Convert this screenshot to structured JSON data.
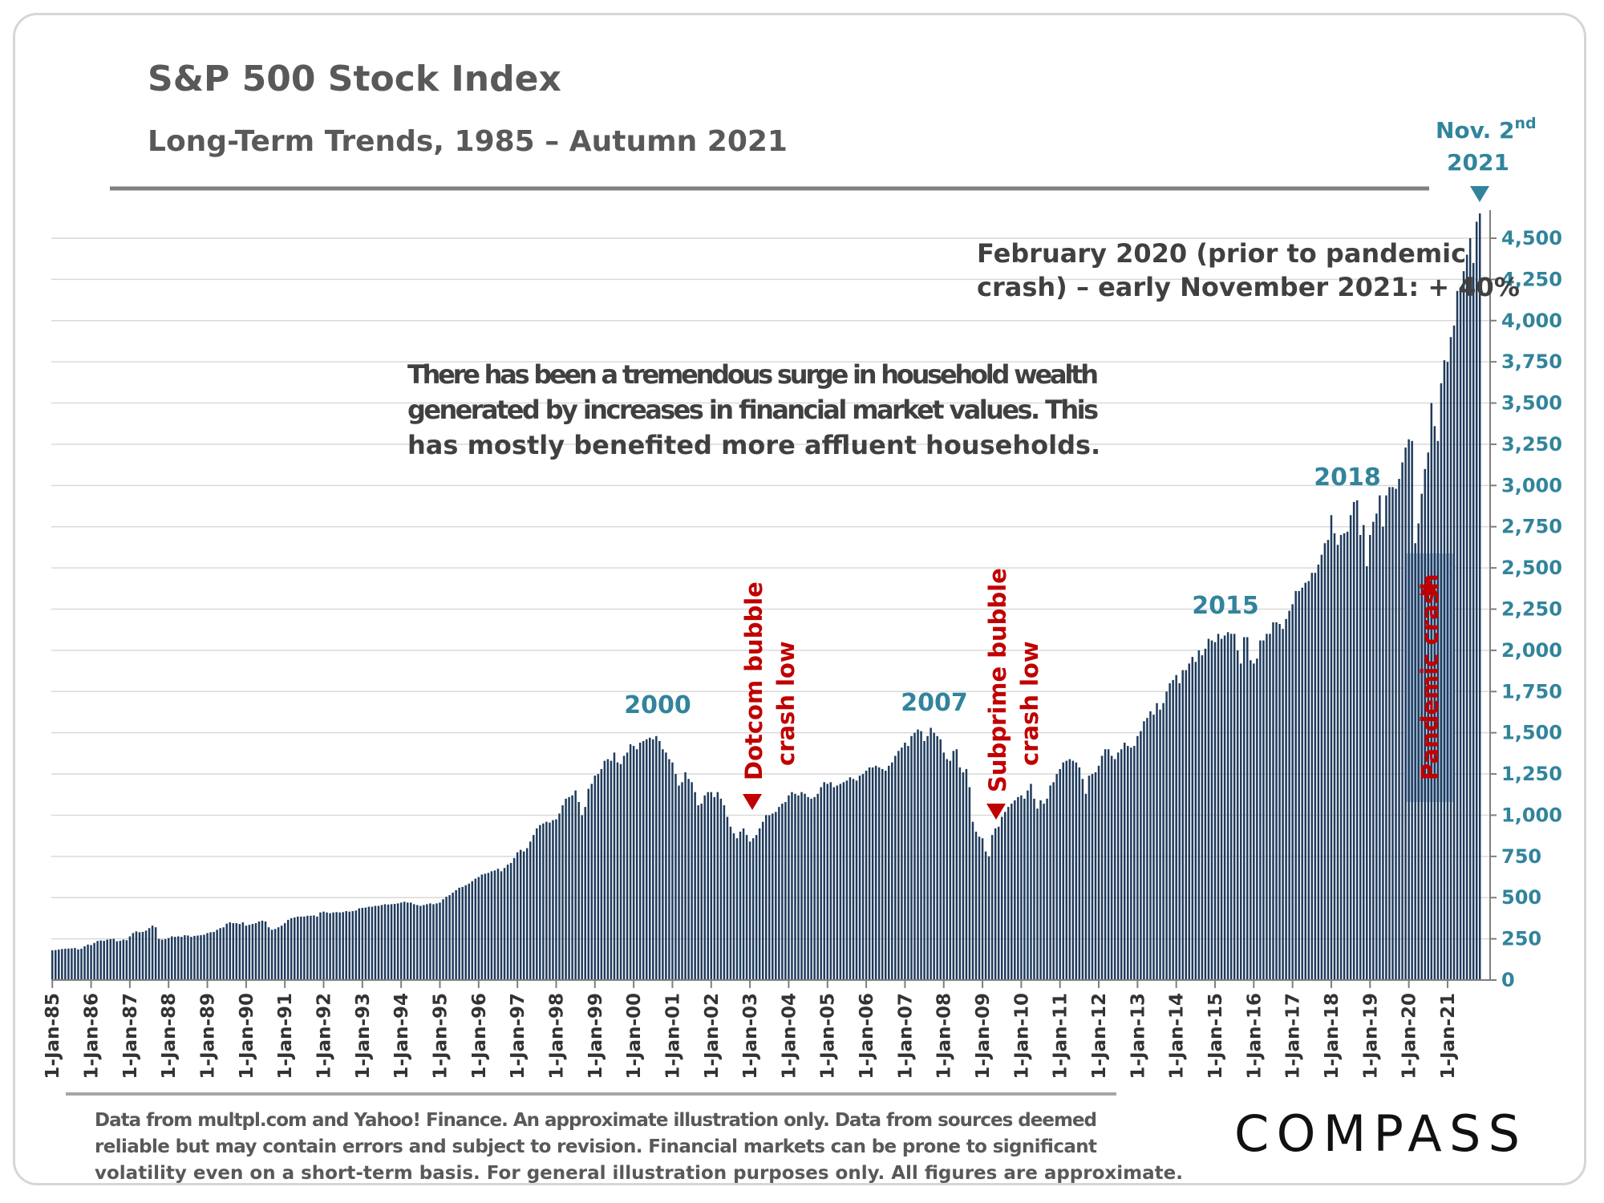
{
  "title": "S&P 500 Stock Index",
  "subtitle": "Long-Term Trends, 1985 – Autumn 2021",
  "annotations": {
    "peak_label_line1": "Nov. 2",
    "peak_label_sup": "nd",
    "peak_label_line2": "2021",
    "pandemic_note_line1": "February 2020 (prior to pandemic",
    "pandemic_note_line2": "crash) – early November 2021: + 40%",
    "wealth_note_line1": "There has been a tremendous surge in household wealth",
    "wealth_note_line2": "generated by increases in financial market values. This",
    "wealth_note_line3": "has mostly benefited more affluent households.",
    "year_2000": "2000",
    "year_2007": "2007",
    "year_2015": "2015",
    "year_2018": "2018",
    "dotcom_line1": "Dotcom bubble",
    "dotcom_line2": "crash low",
    "subprime_line1": "Subprime bubble",
    "subprime_line2": "crash low",
    "pandemic_crash": "Pandemic crash"
  },
  "footer": {
    "line1": "Data from multpl.com and Yahoo! Finance. An approximate illustration only. Data from sources deemed",
    "line2": "reliable but may contain errors and subject to revision. Financial markets can be prone to significant",
    "line3": "volatility even on a short-term basis. For general illustration purposes only. All figures are approximate.",
    "logo": "COMPASS"
  },
  "colors": {
    "bar": "#1f3b5c",
    "teal": "#31849b",
    "red": "#c00000",
    "crash_box": "#b8cce4",
    "grid": "#d9d9d9"
  },
  "chart_data": {
    "type": "bar",
    "title": "S&P 500 Stock Index",
    "subtitle": "Long-Term Trends, 1985 – Autumn 2021",
    "x_tick_labels": [
      "1-Jan-85",
      "1-Jan-86",
      "1-Jan-87",
      "1-Jan-88",
      "1-Jan-89",
      "1-Jan-90",
      "1-Jan-91",
      "1-Jan-92",
      "1-Jan-93",
      "1-Jan-94",
      "1-Jan-95",
      "1-Jan-96",
      "1-Jan-97",
      "1-Jan-98",
      "1-Jan-99",
      "1-Jan-00",
      "1-Jan-01",
      "1-Jan-02",
      "1-Jan-03",
      "1-Jan-04",
      "1-Jan-05",
      "1-Jan-06",
      "1-Jan-07",
      "1-Jan-08",
      "1-Jan-09",
      "1-Jan-10",
      "1-Jan-11",
      "1-Jan-12",
      "1-Jan-13",
      "1-Jan-14",
      "1-Jan-15",
      "1-Jan-16",
      "1-Jan-17",
      "1-Jan-18",
      "1-Jan-19",
      "1-Jan-20",
      "1-Jan-21"
    ],
    "y_ticks": [
      0,
      250,
      500,
      750,
      1000,
      1250,
      1500,
      1750,
      2000,
      2250,
      2500,
      2750,
      3000,
      3250,
      3500,
      3750,
      4000,
      4250,
      4500
    ],
    "y_tick_labels": [
      "0",
      "250",
      "500",
      "750",
      "1,000",
      "1,250",
      "1,500",
      "1,750",
      "2,000",
      "2,250",
      "2,500",
      "2,750",
      "3,000",
      "3,250",
      "3,500",
      "3,750",
      "4,000",
      "4,250",
      "4,500"
    ],
    "ylim": [
      0,
      4700
    ],
    "grid": true,
    "frequency": "monthly",
    "first_period": "1-Jan-85",
    "last_period": "Nov. 2nd 2021",
    "series": [
      {
        "values": [
          180,
          182,
          185,
          188,
          190,
          191,
          192,
          194,
          186,
          190,
          205,
          215,
          212,
          225,
          237,
          240,
          238,
          245,
          248,
          250,
          235,
          238,
          245,
          242,
          265,
          285,
          295,
          290,
          292,
          300,
          315,
          330,
          320,
          250,
          245,
          248,
          255,
          265,
          262,
          265,
          262,
          272,
          270,
          262,
          268,
          270,
          272,
          275,
          285,
          290,
          292,
          305,
          315,
          320,
          342,
          350,
          345,
          345,
          340,
          350,
          330,
          335,
          340,
          345,
          355,
          360,
          355,
          320,
          305,
          310,
          320,
          330,
          345,
          365,
          375,
          380,
          385,
          385,
          385,
          390,
          390,
          392,
          385,
          410,
          415,
          410,
          405,
          410,
          412,
          410,
          412,
          418,
          415,
          418,
          422,
          435,
          438,
          440,
          445,
          445,
          450,
          450,
          455,
          460,
          458,
          460,
          462,
          465,
          470,
          475,
          470,
          470,
          460,
          455,
          450,
          455,
          460,
          465,
          460,
          465,
          470,
          490,
          505,
          515,
          530,
          545,
          560,
          565,
          575,
          585,
          600,
          615,
          625,
          640,
          645,
          650,
          660,
          665,
          675,
          660,
          680,
          700,
          710,
          740,
          775,
          790,
          780,
          800,
          840,
          880,
          920,
          940,
          950,
          960,
          955,
          970,
          975,
          1010,
          1060,
          1100,
          1110,
          1120,
          1150,
          1080,
          1000,
          1050,
          1160,
          1190,
          1240,
          1250,
          1280,
          1330,
          1340,
          1330,
          1380,
          1320,
          1310,
          1360,
          1380,
          1430,
          1420,
          1400,
          1440,
          1450,
          1460,
          1470,
          1460,
          1480,
          1450,
          1400,
          1380,
          1340,
          1320,
          1250,
          1180,
          1200,
          1260,
          1220,
          1200,
          1140,
          1060,
          1070,
          1120,
          1140,
          1140,
          1110,
          1140,
          1100,
          1060,
          990,
          930,
          890,
          860,
          900,
          920,
          880,
          840,
          860,
          880,
          920,
          960,
          1000,
          1000,
          1010,
          1020,
          1050,
          1070,
          1080,
          1120,
          1140,
          1130,
          1120,
          1140,
          1130,
          1110,
          1100,
          1110,
          1130,
          1170,
          1200,
          1190,
          1200,
          1170,
          1180,
          1190,
          1200,
          1210,
          1230,
          1220,
          1210,
          1240,
          1250,
          1270,
          1290,
          1290,
          1300,
          1290,
          1280,
          1270,
          1300,
          1320,
          1360,
          1390,
          1410,
          1440,
          1420,
          1480,
          1500,
          1520,
          1510,
          1450,
          1480,
          1530,
          1500,
          1480,
          1460,
          1380,
          1340,
          1330,
          1390,
          1400,
          1290,
          1260,
          1280,
          1170,
          960,
          900,
          870,
          860,
          780,
          750,
          880,
          920,
          930,
          990,
          1020,
          1050,
          1070,
          1090,
          1110,
          1120,
          1100,
          1150,
          1190,
          1100,
          1040,
          1090,
          1070,
          1100,
          1180,
          1200,
          1250,
          1280,
          1320,
          1330,
          1340,
          1330,
          1320,
          1290,
          1220,
          1130,
          1240,
          1250,
          1260,
          1300,
          1360,
          1400,
          1400,
          1360,
          1340,
          1380,
          1400,
          1440,
          1420,
          1410,
          1420,
          1480,
          1510,
          1570,
          1590,
          1630,
          1610,
          1680,
          1640,
          1680,
          1750,
          1800,
          1820,
          1850,
          1800,
          1880,
          1880,
          1920,
          1960,
          1930,
          2000,
          1970,
          2010,
          2070,
          2060,
          2050,
          2100,
          2070,
          2090,
          2110,
          2100,
          2100,
          2000,
          1920,
          2080,
          2080,
          1940,
          1920,
          1950,
          2060,
          2060,
          2100,
          2100,
          2170,
          2170,
          2160,
          2130,
          2190,
          2240,
          2280,
          2360,
          2360,
          2380,
          2410,
          2420,
          2470,
          2470,
          2520,
          2580,
          2650,
          2670,
          2820,
          2710,
          2640,
          2700,
          2710,
          2720,
          2820,
          2900,
          2910,
          2700,
          2760,
          2510,
          2700,
          2780,
          2830,
          2940,
          2750,
          2940,
          2990,
          2990,
          2980,
          3040,
          3140,
          3230,
          3280,
          3270,
          2650,
          2770,
          2950,
          3100,
          3200,
          3500,
          3360,
          3270,
          3620,
          3760,
          3750,
          3900,
          3970,
          4180,
          4200,
          4300,
          4400,
          4500,
          4350,
          4600,
          4650
        ]
      }
    ]
  }
}
